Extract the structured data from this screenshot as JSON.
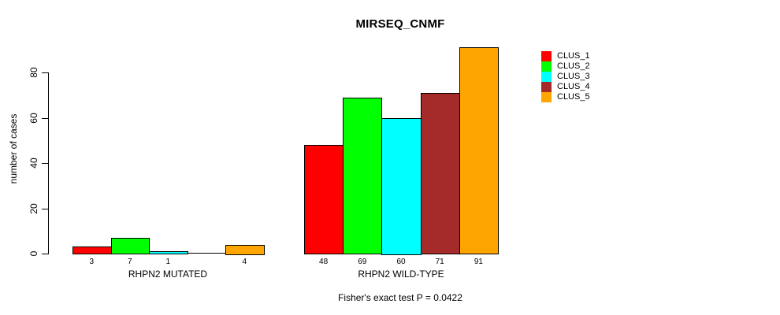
{
  "chart_data": {
    "type": "bar",
    "title": "MIRSEQ_CNMF",
    "ylabel": "number of cases",
    "xlabel": "",
    "ylim": [
      0,
      92
    ],
    "yticks": [
      0,
      20,
      40,
      60,
      80
    ],
    "grid": false,
    "legend_position": "right",
    "categories": [
      "RHPN2 MUTATED",
      "RHPN2 WILD-TYPE"
    ],
    "series": [
      {
        "name": "CLUS_1",
        "color": "#FF0000",
        "values": [
          3,
          48
        ]
      },
      {
        "name": "CLUS_2",
        "color": "#00FF00",
        "values": [
          7,
          69
        ]
      },
      {
        "name": "CLUS_3",
        "color": "#00FFFF",
        "values": [
          1,
          60
        ]
      },
      {
        "name": "CLUS_4",
        "color": "#A52A2A",
        "values": [
          0,
          71
        ]
      },
      {
        "name": "CLUS_5",
        "color": "#FFA500",
        "values": [
          4,
          91
        ]
      }
    ],
    "bar_value_labels_shown": true,
    "zero_value_label_hidden": true,
    "footnote": "Fisher's exact test P = 0.0422",
    "colors": {
      "axis": "#000000",
      "text": "#000000",
      "background": "#FFFFFF",
      "bar_border": "#000000"
    }
  }
}
